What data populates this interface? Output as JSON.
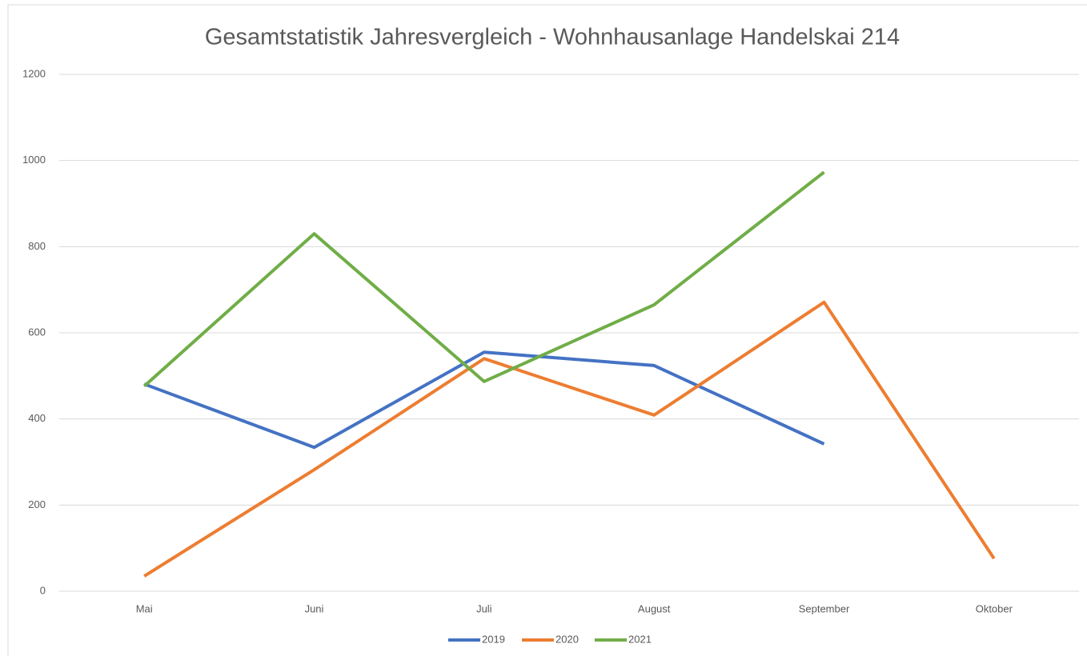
{
  "chart_data": {
    "type": "line",
    "title": "Gesamtstatistik Jahresvergleich -  Wohnhausanlage Handelskai 214",
    "categories": [
      "Mai",
      "Juni",
      "Juli",
      "August",
      "September",
      "Oktober"
    ],
    "series": [
      {
        "name": "2019",
        "color": "#4472c4",
        "values": [
          481,
          334,
          555,
          524,
          342,
          null
        ]
      },
      {
        "name": "2020",
        "color": "#ed7d31",
        "values": [
          35,
          282,
          540,
          409,
          671,
          76
        ]
      },
      {
        "name": "2021",
        "color": "#70ad47",
        "values": [
          476,
          830,
          487,
          665,
          973,
          null
        ]
      }
    ],
    "ylim": [
      0,
      1200
    ],
    "yticks": [
      0,
      200,
      400,
      600,
      800,
      1000,
      1200
    ],
    "grid": true,
    "legend": "bottom"
  }
}
